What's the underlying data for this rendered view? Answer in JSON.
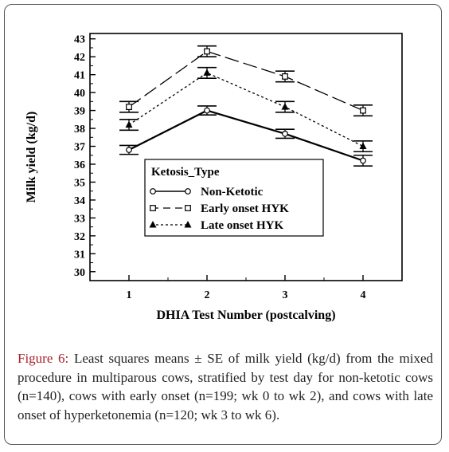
{
  "chart_data": {
    "type": "line",
    "title": "",
    "xlabel": "DHIA Test Number (postcalving)",
    "ylabel": "Milk yield (kg/d)",
    "x": [
      1,
      2,
      3,
      4
    ],
    "xlim": [
      0.5,
      4.5
    ],
    "ylim": [
      29.5,
      43.3
    ],
    "yticks": [
      30,
      31,
      32,
      33,
      34,
      35,
      36,
      37,
      38,
      39,
      40,
      41,
      42,
      43
    ],
    "grid": false,
    "legend": {
      "title": "Ketosis_Type",
      "placement": "middle-left",
      "entries": [
        "Non-Ketotic",
        "Early onset HYK",
        "Late onset HYK"
      ]
    },
    "series": [
      {
        "name": "Non-Ketotic",
        "values": [
          36.8,
          39.0,
          37.7,
          36.2
        ],
        "se": [
          0.25,
          0.25,
          0.25,
          0.3
        ],
        "marker": "circle",
        "line": "solid"
      },
      {
        "name": "Early onset HYK",
        "values": [
          39.2,
          42.3,
          40.9,
          39.0
        ],
        "se": [
          0.3,
          0.3,
          0.3,
          0.3
        ],
        "marker": "square",
        "line": "long-dash"
      },
      {
        "name": "Late onset HYK",
        "values": [
          38.2,
          41.1,
          39.2,
          37.0
        ],
        "se": [
          0.3,
          0.3,
          0.3,
          0.3
        ],
        "marker": "triangle",
        "line": "dotted"
      }
    ]
  },
  "caption": {
    "figure_label": "Figure 6:",
    "text": "Least squares means ± SE of milk yield (kg/d) from the mixed procedure in multiparous cows, stratified by test day for non-ketotic cows (n=140), cows with early onset (n=199; wk 0 to wk 2), and cows with late onset of hyperketonemia (n=120; wk 3 to wk 6)."
  }
}
